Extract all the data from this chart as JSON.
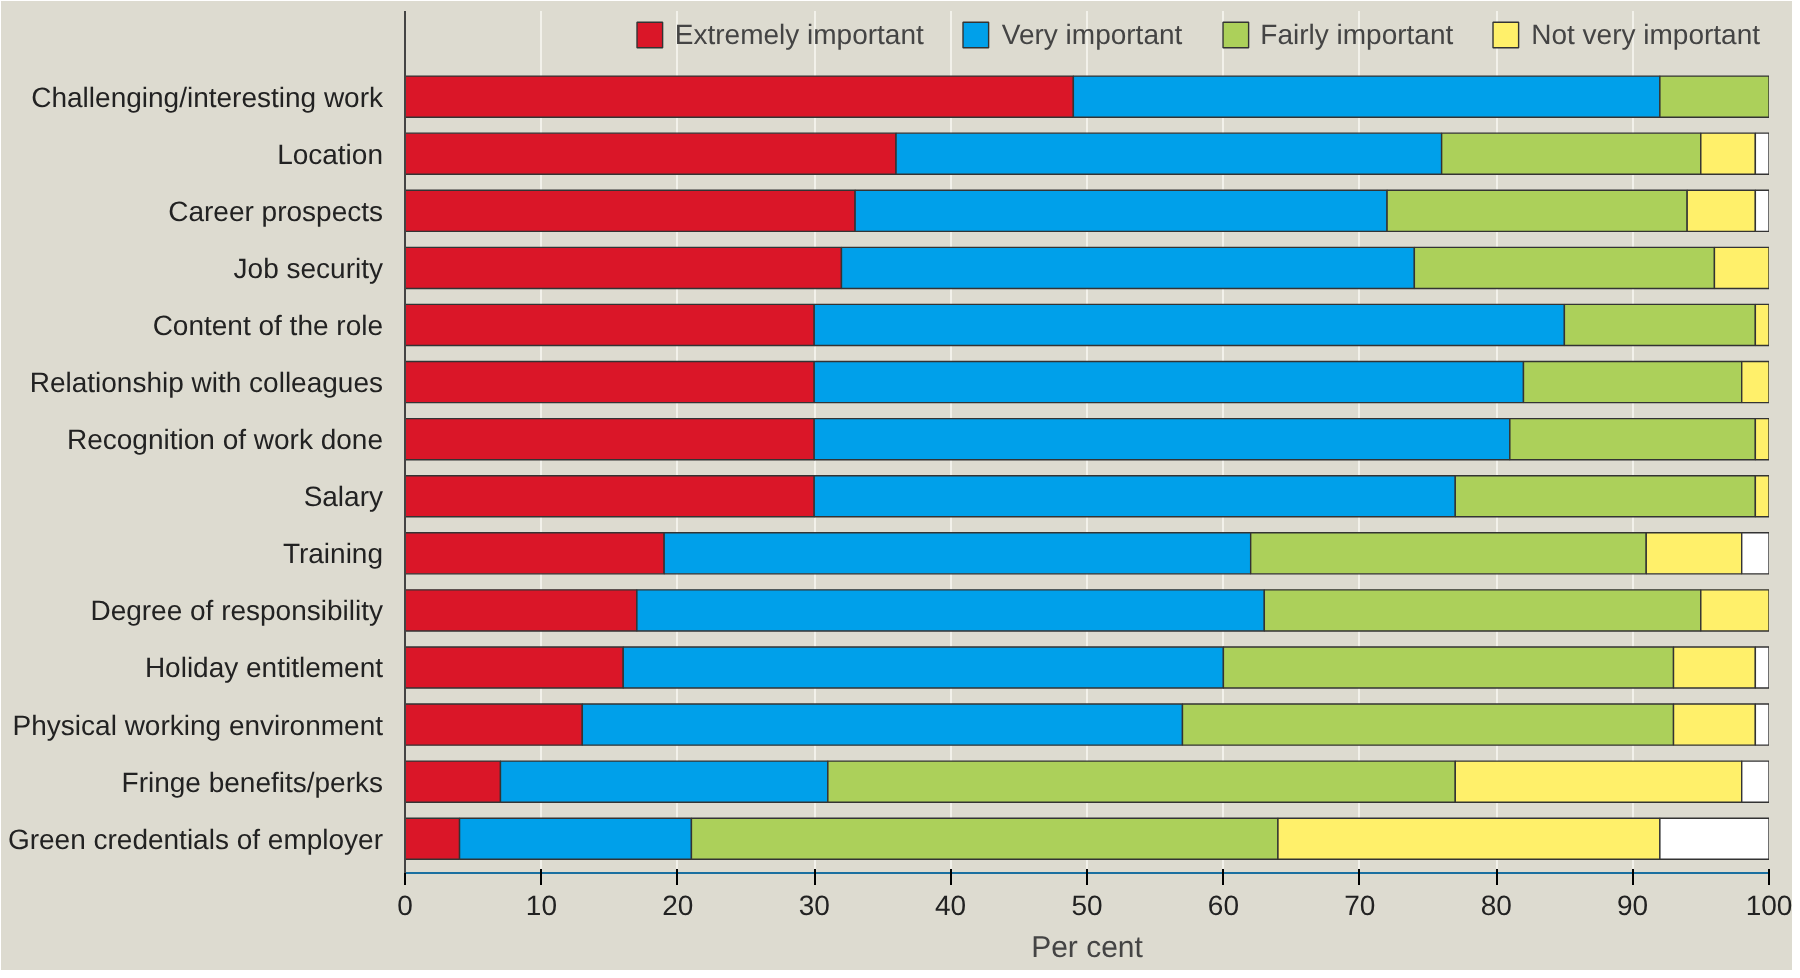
{
  "chart_data": {
    "type": "bar",
    "orientation": "horizontal",
    "stacked": true,
    "xlabel": "Per cent",
    "categories": [
      "Challenging/interesting work",
      "Location",
      "Career prospects",
      "Job security",
      "Content of the role",
      "Relationship with colleagues",
      "Recognition of work done",
      "Salary",
      "Training",
      "Degree of responsibility",
      "Holiday entitlement",
      "Physical working environment",
      "Fringe benefits/perks",
      "Green credentials of employer"
    ],
    "series": [
      {
        "name": "Extremely important",
        "color": "#da1628",
        "values": [
          49,
          36,
          33,
          32,
          30,
          30,
          30,
          30,
          19,
          17,
          16,
          13,
          7,
          4
        ]
      },
      {
        "name": "Very important",
        "color": "#00a0ea",
        "values": [
          43,
          40,
          39,
          42,
          55,
          52,
          51,
          47,
          43,
          46,
          44,
          44,
          24,
          17
        ]
      },
      {
        "name": "Fairly important",
        "color": "#acd05a",
        "values": [
          8,
          19,
          22,
          22,
          14,
          16,
          18,
          22,
          29,
          32,
          33,
          36,
          46,
          43
        ]
      },
      {
        "name": "Not very important",
        "color": "#fff06a",
        "values": [
          0,
          4,
          5,
          4,
          1,
          2,
          1,
          1,
          7,
          5,
          6,
          6,
          21,
          28
        ]
      },
      {
        "color": "#ffffff",
        "values": [
          0,
          1,
          1,
          0,
          0,
          0,
          0,
          0,
          2,
          0,
          1,
          1,
          2,
          8
        ]
      }
    ],
    "xlim": [
      0,
      100
    ],
    "xticks": [
      0,
      10,
      20,
      30,
      40,
      50,
      60,
      70,
      80,
      90,
      100
    ],
    "grid": "x",
    "legend": "top"
  }
}
